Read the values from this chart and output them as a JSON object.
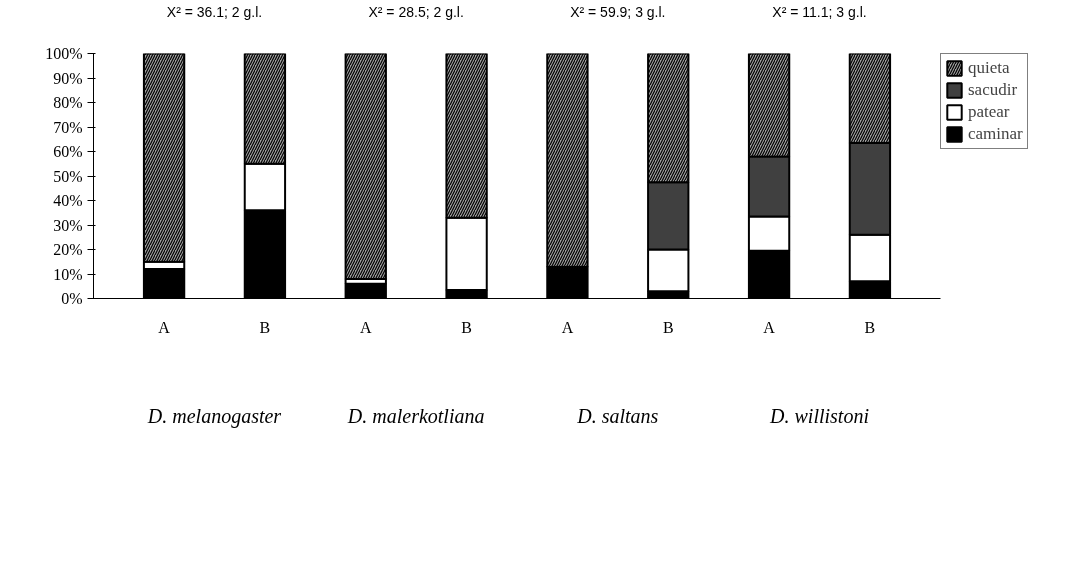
{
  "chart_data": {
    "type": "bar",
    "stacked": true,
    "categories": [
      "A",
      "B",
      "A",
      "B",
      "A",
      "B",
      "A",
      "B"
    ],
    "series": [
      {
        "name": "caminar",
        "color": "#000000",
        "values": [
          12,
          36,
          6,
          3.5,
          13,
          3,
          19.5,
          7
        ]
      },
      {
        "name": "patear",
        "color": "#ffffff",
        "values": [
          3,
          19,
          2,
          29.5,
          0,
          17,
          14,
          19
        ]
      },
      {
        "name": "sacudir",
        "color": "#404040",
        "values": [
          0,
          0,
          0,
          0,
          0,
          27.5,
          24.5,
          37.5
        ]
      },
      {
        "name": "quieta",
        "color": "#a0a0a0",
        "values": [
          85,
          45,
          92,
          67,
          87,
          52.5,
          42,
          36.5
        ]
      }
    ],
    "ylim": [
      0,
      100
    ],
    "yticks": [
      {
        "value": 0,
        "label": "0%"
      },
      {
        "value": 10,
        "label": "10%"
      },
      {
        "value": 20,
        "label": "20%"
      },
      {
        "value": 30,
        "label": "30%"
      },
      {
        "value": 40,
        "label": "40%"
      },
      {
        "value": 50,
        "label": "50%"
      },
      {
        "value": 60,
        "label": "60%"
      },
      {
        "value": 70,
        "label": "70%"
      },
      {
        "value": 80,
        "label": "80%"
      },
      {
        "value": 90,
        "label": "90%"
      },
      {
        "value": 100,
        "label": "100%"
      }
    ],
    "annotations": [
      "X² = 36.1; 2 g.l.",
      "X² = 28.5; 2 g.l.",
      "X² = 59.9; 3 g.l.",
      "X² = 11.1; 3 g.l.",
      "D. melanogaster",
      "D. malerkotliana",
      "D. saltans",
      "D. willistoni"
    ],
    "legend": "top right",
    "grid": false
  }
}
